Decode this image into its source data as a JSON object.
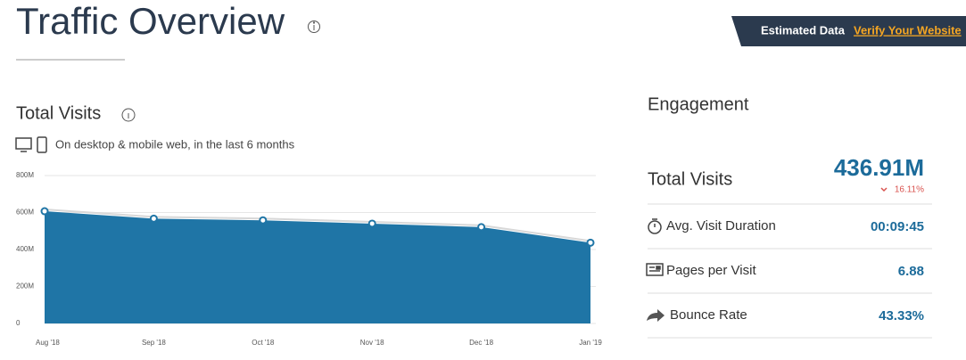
{
  "header": {
    "title": "Traffic Overview",
    "badge": "Estimated Data",
    "link": "Verify Your Website"
  },
  "chart_data": {
    "type": "area",
    "title": "Total Visits",
    "subtitle": "On desktop & mobile web, in the last 6 months",
    "categories": [
      "Aug '18",
      "Sep '18",
      "Oct '18",
      "Nov '18",
      "Dec '18",
      "Jan '19"
    ],
    "values": [
      607,
      567,
      558,
      540,
      521,
      437
    ],
    "color": "#1f75a6",
    "ylim": [
      0,
      800
    ],
    "yticks": [
      0,
      {
        "value": 200,
        "label": "200M"
      },
      {
        "value": 400,
        "label": "400M"
      },
      {
        "value": 600,
        "label": "600M"
      },
      {
        "value": 800,
        "label": "800M"
      }
    ],
    "grid": true
  },
  "engagement": {
    "title": "Engagement",
    "total": {
      "label": "Total Visits",
      "value": "436.91M",
      "change": "16.11%"
    },
    "metrics": [
      {
        "label": "Avg. Visit Duration",
        "value": "00:09:45"
      },
      {
        "label": "Pages per Visit",
        "value": "6.88"
      },
      {
        "label": "Bounce Rate",
        "value": "43.33%"
      }
    ]
  }
}
